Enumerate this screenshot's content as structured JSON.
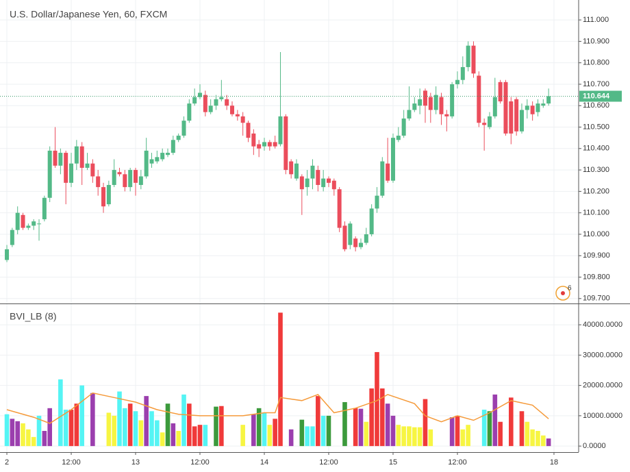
{
  "chart_data": [
    {
      "type": "candlestick",
      "title": "U.S. Dollar/Japanese Yen, 60, FXCM",
      "up_color": "#53b987",
      "down_color": "#eb4d5c",
      "xlim": [
        -1.28,
        106.6
      ],
      "xticks": [
        {
          "value": 0,
          "label": "2"
        },
        {
          "value": 12,
          "label": "12:00"
        },
        {
          "value": 24,
          "label": "13"
        },
        {
          "value": 36,
          "label": "12:00"
        },
        {
          "value": 48,
          "label": "14"
        },
        {
          "value": 60,
          "label": "12:00"
        },
        {
          "value": 72,
          "label": "15"
        },
        {
          "value": 84,
          "label": "12:00"
        },
        {
          "value": 102,
          "label": "18"
        }
      ],
      "ylim": [
        109.677,
        111.093
      ],
      "yticks": [
        {
          "value": 109.7,
          "label": "109.700"
        },
        {
          "value": 109.8,
          "label": "109.800"
        },
        {
          "value": 109.9,
          "label": "109.900"
        },
        {
          "value": 110.0,
          "label": "110.000"
        },
        {
          "value": 110.1,
          "label": "110.100"
        },
        {
          "value": 110.2,
          "label": "110.200"
        },
        {
          "value": 110.3,
          "label": "110.300"
        },
        {
          "value": 110.4,
          "label": "110.400"
        },
        {
          "value": 110.5,
          "label": "110.500"
        },
        {
          "value": 110.6,
          "label": "110.600"
        },
        {
          "value": 110.7,
          "label": "110.700"
        },
        {
          "value": 110.8,
          "label": "110.800"
        },
        {
          "value": 110.9,
          "label": "110.900"
        },
        {
          "value": 111.0,
          "label": "111.000"
        }
      ],
      "grid": true,
      "last_price": {
        "value": 110.644,
        "label": "110.644"
      },
      "badge": "6",
      "open": [
        109.88,
        109.95,
        110.02,
        110.09,
        110.03,
        110.04,
        110.05,
        110.07,
        110.17,
        110.39,
        110.32,
        110.38,
        110.24,
        110.33,
        110.41,
        110.31,
        110.33,
        110.27,
        110.22,
        110.14,
        110.23,
        110.29,
        110.28,
        110.22,
        110.3,
        110.23,
        110.27,
        110.33,
        110.34,
        110.35,
        110.37,
        110.38,
        110.44,
        110.46,
        110.53,
        110.61,
        110.64,
        110.65,
        110.57,
        110.6,
        110.63,
        110.63,
        110.6,
        110.56,
        110.55,
        110.52,
        110.47,
        110.42,
        110.41,
        110.43,
        110.43,
        110.42,
        110.55,
        110.34,
        110.26,
        110.27,
        110.22,
        110.26,
        110.3,
        110.22,
        110.26,
        110.25,
        110.21,
        110.04,
        109.95,
        109.98,
        109.94,
        109.96,
        110.0,
        110.12,
        110.18,
        110.33,
        110.25,
        110.44,
        110.46,
        110.54,
        110.58,
        110.6,
        110.67,
        110.64,
        110.58,
        110.64,
        110.56,
        110.55,
        110.7,
        110.72,
        110.78,
        110.88,
        110.74,
        110.52,
        110.5,
        110.55,
        110.71,
        110.71,
        110.62,
        110.63,
        110.48,
        110.58,
        110.6,
        110.57,
        110.6,
        110.61
      ],
      "high": [
        109.95,
        110.03,
        110.13,
        110.1,
        110.05,
        110.07,
        110.07,
        110.18,
        110.41,
        110.5,
        110.4,
        110.39,
        110.38,
        110.44,
        110.43,
        110.38,
        110.35,
        110.3,
        110.24,
        110.25,
        110.35,
        110.31,
        110.3,
        110.31,
        110.31,
        110.3,
        110.45,
        110.38,
        110.39,
        110.4,
        110.4,
        110.46,
        110.47,
        110.55,
        110.63,
        110.68,
        110.7,
        110.67,
        110.63,
        110.65,
        110.72,
        110.65,
        110.62,
        110.58,
        110.57,
        110.53,
        110.49,
        110.44,
        110.45,
        110.44,
        110.46,
        110.85,
        110.56,
        110.35,
        110.35,
        110.28,
        110.3,
        110.35,
        110.32,
        110.3,
        110.27,
        110.26,
        110.22,
        110.06,
        110.06,
        109.99,
        109.98,
        110.03,
        110.14,
        110.22,
        110.36,
        110.45,
        110.47,
        110.5,
        110.58,
        110.69,
        110.64,
        110.68,
        110.68,
        110.66,
        110.69,
        110.66,
        110.58,
        110.71,
        110.76,
        110.83,
        110.9,
        110.9,
        110.76,
        110.54,
        110.57,
        110.73,
        110.72,
        110.72,
        110.64,
        110.64,
        110.61,
        110.63,
        110.62,
        110.63,
        110.63,
        110.68
      ],
      "low": [
        109.87,
        109.94,
        110.0,
        110.02,
        110.02,
        110.02,
        109.97,
        110.06,
        110.15,
        110.31,
        110.28,
        110.14,
        110.22,
        110.3,
        110.23,
        110.3,
        110.24,
        110.18,
        110.1,
        110.13,
        110.22,
        110.27,
        110.2,
        110.2,
        110.18,
        110.21,
        110.26,
        110.31,
        110.33,
        110.34,
        110.36,
        110.37,
        110.43,
        110.45,
        110.52,
        110.6,
        110.63,
        110.55,
        110.56,
        110.58,
        110.62,
        110.58,
        110.55,
        110.53,
        110.46,
        110.43,
        110.37,
        110.36,
        110.39,
        110.39,
        110.4,
        110.41,
        110.28,
        110.26,
        110.25,
        110.09,
        110.18,
        110.21,
        110.2,
        110.2,
        110.22,
        110.18,
        110.01,
        109.92,
        109.93,
        109.92,
        109.93,
        109.95,
        109.99,
        110.1,
        110.17,
        110.24,
        110.24,
        110.43,
        110.45,
        110.53,
        110.57,
        110.56,
        110.52,
        110.52,
        110.56,
        110.51,
        110.48,
        110.54,
        110.68,
        110.7,
        110.76,
        110.73,
        110.5,
        110.39,
        110.49,
        110.54,
        110.61,
        110.46,
        110.42,
        110.46,
        110.47,
        110.54,
        110.53,
        110.55,
        110.59,
        110.6
      ],
      "close": [
        109.93,
        110.02,
        110.1,
        110.03,
        110.04,
        110.06,
        110.05,
        110.17,
        110.39,
        110.32,
        110.38,
        110.24,
        110.33,
        110.41,
        110.31,
        110.33,
        110.27,
        110.22,
        110.13,
        110.23,
        110.3,
        110.28,
        110.22,
        110.3,
        110.24,
        110.27,
        110.39,
        110.35,
        110.36,
        110.38,
        110.38,
        110.44,
        110.46,
        110.53,
        110.61,
        110.64,
        110.66,
        110.57,
        110.6,
        110.63,
        110.64,
        110.6,
        110.56,
        110.55,
        110.52,
        110.45,
        110.41,
        110.4,
        110.43,
        110.41,
        110.41,
        110.55,
        110.3,
        110.28,
        110.33,
        110.21,
        110.26,
        110.32,
        110.23,
        110.26,
        110.24,
        110.21,
        110.03,
        109.93,
        110.05,
        109.94,
        109.96,
        110.0,
        110.12,
        110.18,
        110.34,
        110.25,
        110.45,
        110.46,
        110.54,
        110.58,
        110.61,
        110.63,
        110.6,
        110.58,
        110.65,
        110.56,
        110.55,
        110.7,
        110.72,
        110.78,
        110.88,
        110.75,
        110.52,
        110.51,
        110.55,
        110.64,
        110.62,
        110.47,
        110.47,
        110.48,
        110.58,
        110.6,
        110.56,
        110.61,
        110.61,
        110.644
      ]
    },
    {
      "type": "bar",
      "title": "BVI_LB (8)",
      "ylim": [
        -2000,
        46800
      ],
      "yticks": [
        {
          "value": 0,
          "label": "0.0000"
        },
        {
          "value": 10000,
          "label": "10000.0000"
        },
        {
          "value": 20000,
          "label": "20000.0000"
        },
        {
          "value": 30000,
          "label": "30000.0000"
        },
        {
          "value": 40000,
          "label": "40000.0000"
        }
      ],
      "values": [
        10500,
        9000,
        8200,
        7500,
        5500,
        3000,
        10000,
        5000,
        12500,
        null,
        22000,
        12000,
        12000,
        14000,
        20000,
        null,
        17500,
        null,
        null,
        11000,
        10000,
        18000,
        12500,
        14000,
        11500,
        8500,
        16500,
        11500,
        8500,
        4500,
        14000,
        7500,
        5000,
        17000,
        14000,
        6500,
        7000,
        7000,
        null,
        13000,
        13200,
        null,
        null,
        null,
        7000,
        null,
        10500,
        12500,
        11000,
        7000,
        9000,
        44000,
        null,
        5500,
        null,
        8700,
        6500,
        6500,
        16500,
        10000,
        10000,
        null,
        null,
        14500,
        null,
        12500,
        12300,
        8000,
        19000,
        31000,
        19000,
        14000,
        10000,
        7000,
        6500,
        6500,
        6200,
        6200,
        15500,
        5500,
        null,
        null,
        null,
        9500,
        10000,
        5500,
        7000,
        null,
        null,
        12000,
        11500,
        17000,
        8000,
        null,
        16000,
        null,
        11500,
        8000,
        5500,
        5000,
        3500,
        2500
      ],
      "colors": [
        "#55f4f4",
        "#9b3fae",
        "#9b3fae",
        "#f7f542",
        "#f7f542",
        "#f7f542",
        "#55f4f4",
        "#9b3fae",
        "#9b3fae",
        null,
        "#55f4f4",
        "#55f4f4",
        "#f03a3a",
        "#f03a3a",
        "#55f4f4",
        null,
        "#9b3fae",
        null,
        null,
        "#f7f542",
        "#f7f542",
        "#55f4f4",
        "#55f4f4",
        "#f03a3a",
        "#55f4f4",
        "#f7f542",
        "#9b3fae",
        "#55f4f4",
        "#55f4f4",
        "#f7f542",
        "#3c9a3c",
        "#9b3fae",
        "#f7f542",
        "#55f4f4",
        "#f03a3a",
        "#f03a3a",
        "#f03a3a",
        "#55f4f4",
        null,
        "#3c9a3c",
        "#f03a3a",
        null,
        null,
        null,
        "#f7f542",
        null,
        "#9b3fae",
        "#3c9a3c",
        "#55f4f4",
        "#f7f542",
        "#f03a3a",
        "#f03a3a",
        null,
        "#9b3fae",
        null,
        "#3c9a3c",
        "#55f4f4",
        "#55f4f4",
        "#f03a3a",
        "#55f4f4",
        "#3c9a3c",
        null,
        null,
        "#3c9a3c",
        null,
        "#f03a3a",
        "#9b3fae",
        "#f7f542",
        "#f03a3a",
        "#f03a3a",
        "#f03a3a",
        "#9b3fae",
        "#9b3fae",
        "#f7f542",
        "#f7f542",
        "#f7f542",
        "#f7f542",
        "#f7f542",
        "#f03a3a",
        "#f7f542",
        null,
        null,
        null,
        "#9b3fae",
        "#f03a3a",
        "#f7f542",
        "#f7f542",
        null,
        null,
        "#55f4f4",
        "#3c9a3c",
        "#9b3fae",
        "#f03a3a",
        null,
        "#f03a3a",
        null,
        "#f03a3a",
        "#f7f542",
        "#f7f542",
        "#f7f542",
        "#f7f542",
        "#9b3fae"
      ],
      "ma": {
        "color": "#f59a3a",
        "x": [
          0,
          5,
          8,
          12,
          16,
          20,
          24,
          28,
          32,
          36,
          40,
          44,
          48,
          50,
          51,
          55,
          58,
          61,
          65,
          69,
          71,
          76,
          78,
          81,
          84,
          87,
          90,
          94,
          98,
          101
        ],
        "values": [
          12000,
          9500,
          7500,
          12000,
          17500,
          16000,
          14500,
          12000,
          10500,
          10000,
          10000,
          10000,
          11000,
          11000,
          16000,
          15000,
          17000,
          11000,
          12500,
          15000,
          17000,
          14000,
          10000,
          8000,
          10000,
          8500,
          11000,
          15000,
          13500,
          9000
        ]
      }
    }
  ]
}
